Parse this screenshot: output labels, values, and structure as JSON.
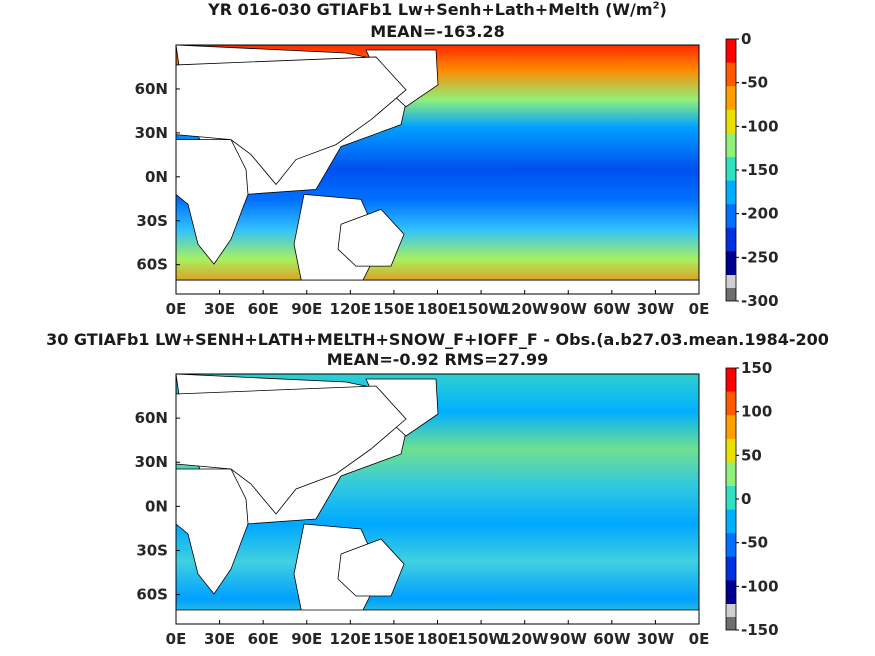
{
  "chart_data": [
    {
      "type": "heatmap",
      "title_main": "YR 016-030 GTIAFb1 Lw+Senh+Lath+Melth (W/m",
      "title_sup": "2",
      "title_end": ")",
      "subtitle": "MEAN=-163.28",
      "xticks": [
        "0E",
        "30E",
        "60E",
        "90E",
        "120E",
        "150E",
        "180E",
        "150W",
        "120W",
        "90W",
        "60W",
        "30W",
        "0E"
      ],
      "yticks": [
        "60N",
        "30N",
        "0N",
        "30S",
        "60S"
      ],
      "colorbar": {
        "min": -300,
        "max": 0,
        "ticks": [
          "0",
          "-50",
          "-100",
          "-150",
          "-200",
          "-250",
          "-300"
        ],
        "colors": [
          "#ff0000",
          "#ff5a00",
          "#ffa000",
          "#e8e000",
          "#8ff07a",
          "#30e0c0",
          "#00b0ff",
          "#0070ff",
          "#0030e0",
          "#000090"
        ],
        "below_colors": [
          "#d0d0d0",
          "#6e6e6e"
        ]
      }
    },
    {
      "type": "heatmap",
      "title_main": "30 GTIAFb1 LW+SENH+LATH+MELTH+SNOW_F+IOFF_F - Obs.(a.b27.03.mean.1984-200",
      "subtitle": "MEAN=-0.92 RMS=27.99",
      "xticks": [
        "0E",
        "30E",
        "60E",
        "90E",
        "120E",
        "150E",
        "180E",
        "150W",
        "120W",
        "90W",
        "60W",
        "30W",
        "0E"
      ],
      "yticks": [
        "60N",
        "30N",
        "0N",
        "30S",
        "60S"
      ],
      "colorbar": {
        "min": -150,
        "max": 150,
        "ticks": [
          "150",
          "100",
          "50",
          "0",
          "-50",
          "-100",
          "-150"
        ],
        "colors": [
          "#ff0000",
          "#ff5a00",
          "#ffa000",
          "#e8e000",
          "#8ff07a",
          "#30e0c0",
          "#00b0ff",
          "#0070ff",
          "#0030e0",
          "#000090"
        ],
        "below_colors": [
          "#d0d0d0",
          "#6e6e6e"
        ]
      }
    }
  ]
}
